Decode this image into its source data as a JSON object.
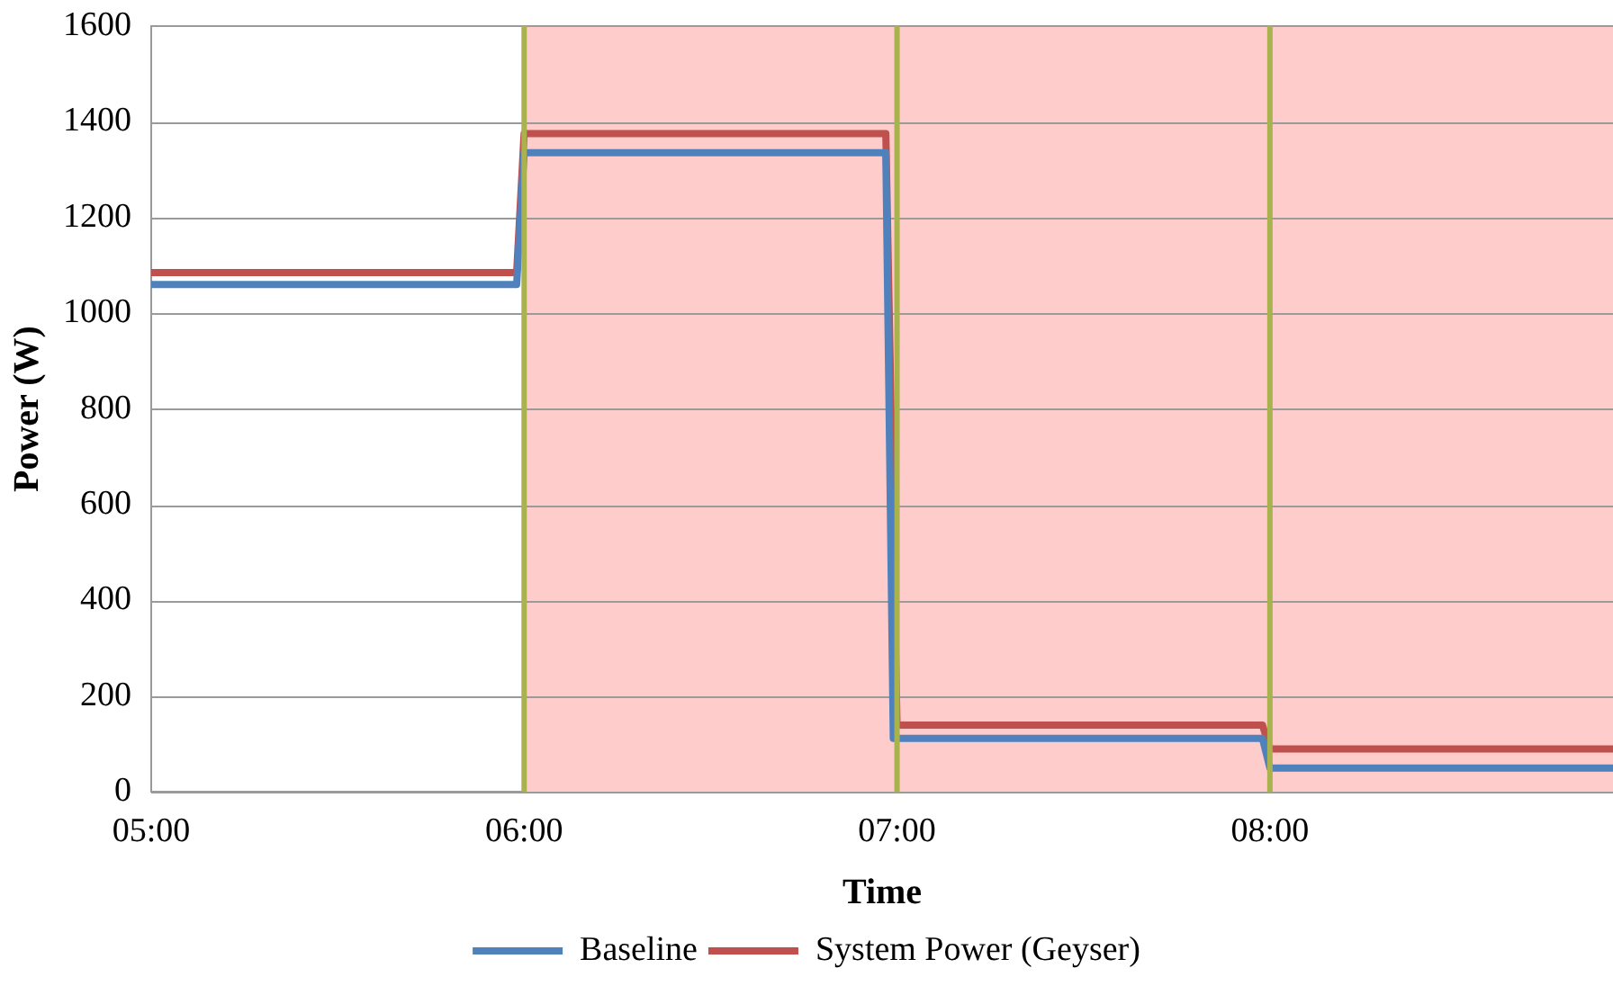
{
  "chart_data": {
    "type": "line",
    "xlabel": "Time",
    "ylabel": "Power (W)",
    "xlim": [
      5,
      8.92
    ],
    "xticks": [
      {
        "value": 5,
        "label": "05:00"
      },
      {
        "value": 6,
        "label": "06:00"
      },
      {
        "value": 7,
        "label": "07:00"
      },
      {
        "value": 8,
        "label": "08:00"
      }
    ],
    "ylim": [
      0,
      1600
    ],
    "yticks": [
      0,
      200,
      400,
      600,
      800,
      1000,
      1200,
      1400,
      1600
    ],
    "series": [
      {
        "name": "Baseline",
        "color": "#4f81bd",
        "x": [
          5,
          5.98,
          6.0,
          6.97,
          6.99,
          7.98,
          8.0,
          8.92
        ],
        "values": [
          1060,
          1060,
          1335,
          1335,
          112,
          112,
          50,
          50
        ]
      },
      {
        "name": "System Power (Geyser)",
        "color": "#c0504d",
        "x": [
          5,
          5.98,
          6.0,
          6.97,
          7.0,
          7.98,
          8.0,
          8.92
        ],
        "values": [
          1085,
          1085,
          1375,
          1375,
          140,
          140,
          90,
          90
        ]
      }
    ],
    "bands": [
      {
        "axis": "x",
        "from": 6,
        "to": 8.92,
        "color": "#ffcccc"
      }
    ],
    "ref_lines": [
      {
        "axis": "x",
        "value": 6,
        "color": "#a9b24c"
      },
      {
        "axis": "x",
        "value": 7,
        "color": "#a9b24c"
      },
      {
        "axis": "x",
        "value": 8,
        "color": "#a9b24c"
      }
    ],
    "grid": "y",
    "legend": "bottom",
    "marker": "none",
    "line_style": "solid"
  }
}
